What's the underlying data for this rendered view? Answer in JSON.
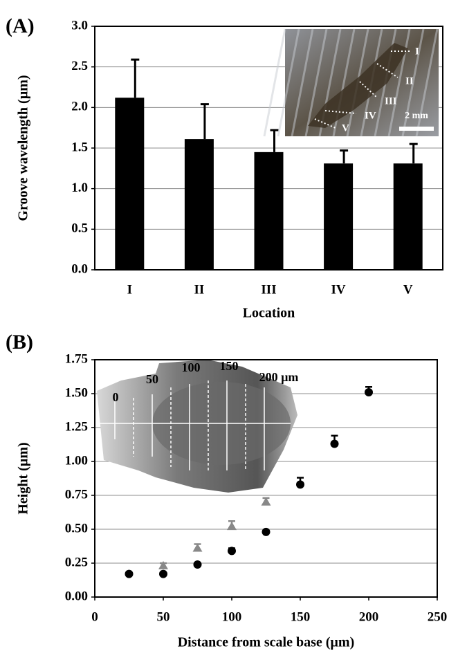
{
  "chart_data": [
    {
      "type": "bar",
      "panel_label": "(A)",
      "categories": [
        "I",
        "II",
        "III",
        "IV",
        "V"
      ],
      "values": [
        2.12,
        1.61,
        1.45,
        1.31,
        1.31
      ],
      "errors": [
        0.47,
        0.43,
        0.27,
        0.16,
        0.24
      ],
      "color": "#000000",
      "ylim": [
        0,
        3
      ],
      "yticks": [
        {
          "value": 0,
          "label": "0.0"
        },
        0.5,
        {
          "value": 1,
          "label": "1.0"
        },
        1.5,
        {
          "value": 2,
          "label": "2.0"
        },
        2.5,
        {
          "value": 3,
          "label": "3.0"
        }
      ],
      "ylabel": "Groove wavelength (µm)",
      "xlabel": "Location",
      "grid": true,
      "inset_labels": [
        "I",
        "II",
        "III",
        "IV",
        "V",
        "2 mm"
      ]
    },
    {
      "type": "scatter",
      "panel_label": "(B)",
      "series": [
        {
          "color": "#000000",
          "marker": "circle",
          "x": [
            25,
            50,
            75,
            100,
            125,
            150,
            175,
            200
          ],
          "values": [
            0.17,
            0.17,
            0.24,
            0.34,
            0.48,
            0.83,
            1.13,
            1.51
          ],
          "errors": [
            0.01,
            0.01,
            0.01,
            0.02,
            0.01,
            0.05,
            0.06,
            0.04
          ]
        },
        {
          "color": "#888888",
          "marker": "triangle",
          "x": [
            50,
            75,
            100,
            125
          ],
          "values": [
            0.23,
            0.36,
            0.52,
            0.7
          ],
          "errors": [
            0.02,
            0.03,
            0.04,
            0.03
          ]
        }
      ],
      "xlim": [
        0,
        250
      ],
      "xticks": [
        0,
        50,
        100,
        150,
        200,
        250
      ],
      "ylim": [
        0,
        1.75
      ],
      "yticks": [
        {
          "value": 0,
          "label": "0.00"
        },
        0.25,
        {
          "value": 0.5,
          "label": "0.50"
        },
        0.75,
        {
          "value": 1,
          "label": "1.00"
        },
        1.25,
        {
          "value": 1.5,
          "label": "1.50"
        },
        1.75
      ],
      "xlabel": "Distance from scale base (µm)",
      "ylabel": "Height (µm)",
      "grid": true,
      "inset_labels": [
        "0",
        "50",
        "100",
        "150",
        "200 µm"
      ]
    }
  ]
}
